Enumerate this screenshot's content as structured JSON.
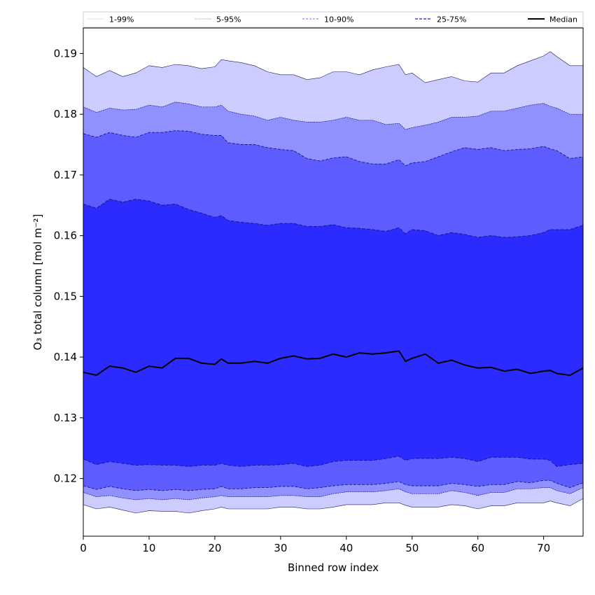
{
  "chart_data": {
    "type": "area",
    "xlabel": "Binned row index",
    "ylabel": "O₃ total column [mol m⁻²]",
    "xlim": [
      0,
      76
    ],
    "ylim": [
      0.1105,
      0.1942
    ],
    "xticks": [
      0,
      10,
      20,
      30,
      40,
      50,
      60,
      70
    ],
    "yticks": [
      0.12,
      0.13,
      0.14,
      0.15,
      0.16,
      0.17,
      0.18,
      0.19
    ],
    "grid": false,
    "legend_position": "top",
    "colors": {
      "band_1_99": "#ccccff",
      "band_5_95": "#9090ff",
      "band_10_90": "#5c5cff",
      "band_25_75": "#2b2bff",
      "median": "#000000",
      "lines_1_99": "#d9d9ff",
      "lines_5_95": "#8080ee",
      "lines_10_90": "#6f6fee",
      "lines_25_75": "#4040dd"
    },
    "legend": [
      {
        "label": "1-99%",
        "key": "b1"
      },
      {
        "label": "5-95%",
        "key": "b5"
      },
      {
        "label": "10-90%",
        "key": "b10"
      },
      {
        "label": "25-75%",
        "key": "b25"
      },
      {
        "label": "Median",
        "key": "med"
      }
    ],
    "x": [
      0,
      2,
      4,
      6,
      8,
      10,
      12,
      14,
      16,
      18,
      20,
      21,
      22,
      24,
      26,
      28,
      30,
      32,
      34,
      36,
      38,
      40,
      42,
      44,
      46,
      48,
      49,
      50,
      52,
      54,
      56,
      58,
      60,
      62,
      64,
      66,
      68,
      70,
      71,
      72,
      74,
      76
    ],
    "series": [
      {
        "name": "1-99%",
        "lower": [
          0.1157,
          0.115,
          0.1153,
          0.1148,
          0.1143,
          0.1147,
          0.1146,
          0.1146,
          0.1143,
          0.1147,
          0.115,
          0.1153,
          0.115,
          0.115,
          0.115,
          0.115,
          0.1153,
          0.1153,
          0.115,
          0.115,
          0.1153,
          0.1157,
          0.1157,
          0.1157,
          0.116,
          0.116,
          0.1156,
          0.1153,
          0.1153,
          0.1153,
          0.1157,
          0.1155,
          0.115,
          0.1155,
          0.1155,
          0.116,
          0.116,
          0.116,
          0.1163,
          0.116,
          0.1155,
          0.1167
        ],
        "upper": [
          0.1877,
          0.1862,
          0.1872,
          0.1862,
          0.1868,
          0.188,
          0.1877,
          0.1882,
          0.188,
          0.1875,
          0.1878,
          0.189,
          0.1888,
          0.1885,
          0.188,
          0.187,
          0.1865,
          0.1865,
          0.1857,
          0.186,
          0.187,
          0.187,
          0.1865,
          0.1873,
          0.1878,
          0.1882,
          0.1865,
          0.1868,
          0.1852,
          0.1857,
          0.1862,
          0.1855,
          0.1853,
          0.1868,
          0.1868,
          0.188,
          0.1888,
          0.1896,
          0.1903,
          0.1895,
          0.188,
          0.188
        ]
      },
      {
        "name": "5-95%",
        "lower": [
          0.1177,
          0.117,
          0.1172,
          0.1168,
          0.1165,
          0.1167,
          0.1165,
          0.1167,
          0.1165,
          0.1168,
          0.117,
          0.1172,
          0.117,
          0.117,
          0.117,
          0.117,
          0.1172,
          0.1172,
          0.117,
          0.117,
          0.1175,
          0.1178,
          0.1178,
          0.1178,
          0.118,
          0.1183,
          0.1178,
          0.1175,
          0.1175,
          0.1175,
          0.118,
          0.1177,
          0.1172,
          0.1177,
          0.1177,
          0.1183,
          0.1183,
          0.1185,
          0.1185,
          0.118,
          0.1175,
          0.1185
        ],
        "upper": [
          0.1812,
          0.1803,
          0.181,
          0.1807,
          0.1808,
          0.1815,
          0.1812,
          0.182,
          0.1817,
          0.1812,
          0.1812,
          0.1815,
          0.1805,
          0.18,
          0.1797,
          0.179,
          0.1795,
          0.179,
          0.1787,
          0.1787,
          0.179,
          0.1795,
          0.179,
          0.179,
          0.1783,
          0.1785,
          0.1775,
          0.1778,
          0.1782,
          0.1787,
          0.1795,
          0.1795,
          0.1797,
          0.1805,
          0.1805,
          0.181,
          0.1815,
          0.1818,
          0.1813,
          0.181,
          0.18,
          0.18
        ]
      },
      {
        "name": "10-90%",
        "lower": [
          0.1188,
          0.1182,
          0.1187,
          0.1183,
          0.118,
          0.1182,
          0.118,
          0.1182,
          0.118,
          0.1182,
          0.1183,
          0.1187,
          0.1183,
          0.1183,
          0.1185,
          0.1185,
          0.1187,
          0.1187,
          0.1183,
          0.1185,
          0.1188,
          0.119,
          0.119,
          0.119,
          0.1192,
          0.1195,
          0.119,
          0.1188,
          0.1188,
          0.1188,
          0.1192,
          0.119,
          0.1187,
          0.119,
          0.119,
          0.1195,
          0.1193,
          0.1197,
          0.1197,
          0.1192,
          0.1185,
          0.1193
        ],
        "upper": [
          0.1768,
          0.1762,
          0.177,
          0.1765,
          0.1762,
          0.177,
          0.177,
          0.1773,
          0.1772,
          0.1767,
          0.1765,
          0.1765,
          0.1753,
          0.175,
          0.175,
          0.1745,
          0.1742,
          0.174,
          0.1727,
          0.1723,
          0.1728,
          0.173,
          0.1722,
          0.1718,
          0.1718,
          0.1725,
          0.1715,
          0.172,
          0.1722,
          0.173,
          0.1738,
          0.1745,
          0.1742,
          0.1745,
          0.174,
          0.1742,
          0.1743,
          0.1747,
          0.1743,
          0.174,
          0.1727,
          0.173
        ]
      },
      {
        "name": "25-75%",
        "lower": [
          0.1232,
          0.1223,
          0.1228,
          0.1225,
          0.1222,
          0.1223,
          0.1222,
          0.1222,
          0.122,
          0.1222,
          0.1222,
          0.1225,
          0.1222,
          0.122,
          0.1222,
          0.1222,
          0.1223,
          0.1225,
          0.122,
          0.1222,
          0.1228,
          0.123,
          0.123,
          0.123,
          0.1233,
          0.1237,
          0.123,
          0.1233,
          0.1233,
          0.1233,
          0.1235,
          0.1233,
          0.1228,
          0.1235,
          0.1235,
          0.1235,
          0.1232,
          0.1232,
          0.123,
          0.122,
          0.1223,
          0.1225
        ],
        "upper": [
          0.1652,
          0.1645,
          0.166,
          0.1655,
          0.166,
          0.1657,
          0.165,
          0.1652,
          0.1643,
          0.1637,
          0.163,
          0.1633,
          0.1625,
          0.1622,
          0.162,
          0.1617,
          0.162,
          0.162,
          0.1615,
          0.1615,
          0.1618,
          0.1613,
          0.1612,
          0.161,
          0.1607,
          0.1613,
          0.1603,
          0.161,
          0.1608,
          0.16,
          0.1605,
          0.1602,
          0.1597,
          0.16,
          0.1597,
          0.1598,
          0.16,
          0.1605,
          0.161,
          0.161,
          0.161,
          0.1617
        ]
      },
      {
        "name": "Median",
        "values": [
          0.1375,
          0.137,
          0.1385,
          0.1382,
          0.1375,
          0.1385,
          0.1382,
          0.1398,
          0.1398,
          0.139,
          0.1388,
          0.1397,
          0.139,
          0.139,
          0.1393,
          0.139,
          0.1398,
          0.1402,
          0.1397,
          0.1398,
          0.1405,
          0.14,
          0.1407,
          0.1405,
          0.1407,
          0.141,
          0.1393,
          0.1398,
          0.1405,
          0.139,
          0.1395,
          0.1387,
          0.1382,
          0.1383,
          0.1377,
          0.138,
          0.1373,
          0.1377,
          0.1378,
          0.1373,
          0.137,
          0.1382
        ]
      }
    ]
  }
}
